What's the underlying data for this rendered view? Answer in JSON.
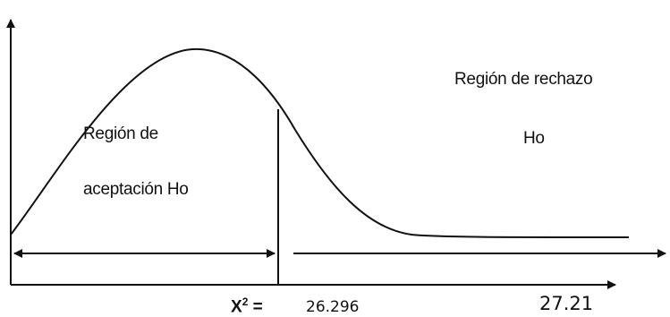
{
  "labels": {
    "acceptance_line1": "Región de",
    "acceptance_line2": "aceptación Ho",
    "rejection_line1": "Región de rechazo",
    "rejection_line2": "Ho",
    "statistic_label": "X",
    "statistic_sup": "2",
    "statistic_eq": " =",
    "critical_value": "26.296",
    "observed_value": "27.21"
  },
  "colors": {
    "stroke": "#111111",
    "text": "#111111",
    "background": "#ffffff"
  }
}
